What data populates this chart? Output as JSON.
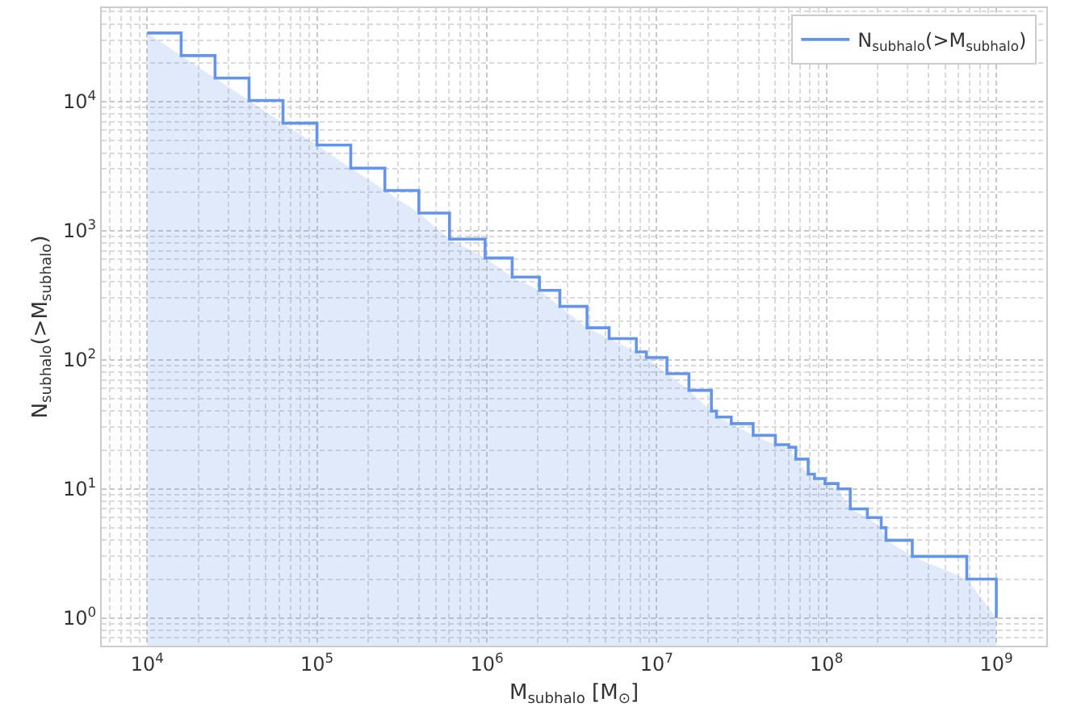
{
  "chart_data": {
    "type": "step",
    "xlabel": "M$_{subhalo}$ [M$_{⊙}$]",
    "ylabel": "N$_{subhalo}$(>M$_{subhalo}$)",
    "log": "xy",
    "grid": true,
    "legend": "top right",
    "xlim": [
      5400,
      1970000000
    ],
    "ylim": [
      0.61,
      53000
    ],
    "xticks": [
      {
        "value": 10000,
        "label": "10$^{4}$"
      },
      {
        "value": 100000,
        "label": "10$^{5}$"
      },
      {
        "value": 1000000,
        "label": "10$^{6}$"
      },
      {
        "value": 10000000,
        "label": "10$^{7}$"
      },
      {
        "value": 100000000,
        "label": "10$^{8}$"
      },
      {
        "value": 1000000000,
        "label": "10$^{9}$"
      }
    ],
    "yticks": [
      {
        "value": 1,
        "label": "10$^{0}$"
      },
      {
        "value": 10,
        "label": "10$^{1}$"
      },
      {
        "value": 100,
        "label": "10$^{2}$"
      },
      {
        "value": 1000,
        "label": "10$^{3}$"
      },
      {
        "value": 10000,
        "label": "10$^{4}$"
      }
    ],
    "x": [
      10000,
      15850,
      25100,
      39800,
      63100,
      100000,
      158000,
      251000,
      398000,
      603000,
      977000,
      1410000,
      2040000,
      2690000,
      3890000,
      5250000,
      7590000,
      8700000,
      11500000,
      15500000,
      21000000,
      22500000,
      27500000,
      37000000,
      50000000,
      60000000,
      66000000,
      78000000,
      85000000,
      98000000,
      117000000,
      138000000,
      174000000,
      210000000,
      224000000,
      320000000,
      670000000,
      1000000000
    ],
    "series": [
      {
        "type": "area",
        "color": "#6495ed",
        "values": [
          34000,
          22700,
          15200,
          10200,
          6800,
          4600,
          3050,
          2050,
          1370,
          860,
          615,
          437,
          345,
          259,
          177,
          146,
          115,
          104,
          78,
          58,
          40,
          36,
          32,
          26,
          22,
          21,
          17,
          13,
          12,
          11,
          10,
          7,
          6,
          5,
          4,
          3,
          2,
          1
        ]
      },
      {
        "name": "N$_{subhalo}$(>M$_{subhalo}$)",
        "color": "#6495ed",
        "values": [
          34000,
          22700,
          15200,
          10200,
          6800,
          4600,
          3050,
          2050,
          1370,
          860,
          615,
          437,
          345,
          259,
          177,
          146,
          115,
          104,
          78,
          58,
          40,
          36,
          32,
          26,
          22,
          21,
          17,
          13,
          12,
          11,
          10,
          7,
          6,
          5,
          4,
          3,
          2,
          1
        ]
      }
    ]
  }
}
